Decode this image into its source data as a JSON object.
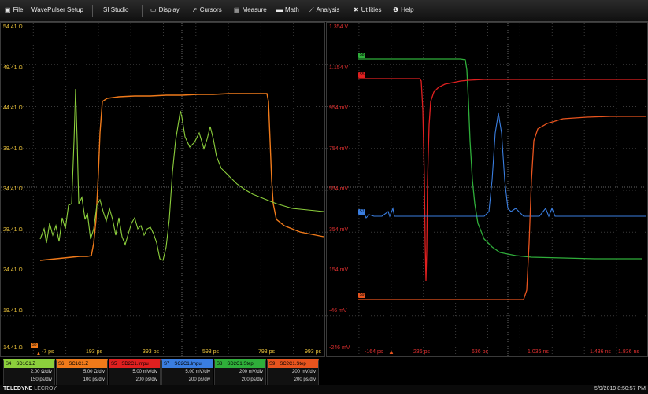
{
  "menu": {
    "file": "File",
    "wavepulser": "WavePulser Setup",
    "si_studio": "SI Studio",
    "display": "Display",
    "cursors": "Cursors",
    "measure": "Measure",
    "math": "Math",
    "analysis": "Analysis",
    "utilities": "Utilities",
    "help": "Help"
  },
  "left_grid": {
    "y_labels": [
      "54.41 Ω",
      "49.41 Ω",
      "44.41 Ω",
      "39.41 Ω",
      "34.41 Ω",
      "29.41 Ω",
      "24.41 Ω",
      "19.41 Ω",
      "14.41 Ω"
    ],
    "x_labels": [
      "-7 ps",
      "193 ps",
      "393 ps",
      "593 ps",
      "793 ps",
      "993 ps"
    ],
    "marker": "S6"
  },
  "right_grid": {
    "y_labels": [
      "1.354 V",
      "1.154 V",
      "954 mV",
      "754 mV",
      "554 mV",
      "354 mV",
      "154 mV",
      "-46 mV",
      "-246 mV"
    ],
    "x_labels": [
      "-164 ps",
      "236 ps",
      "636 ps",
      "1.036 ns",
      "1.436 ns",
      "1.836 ns"
    ],
    "markers": {
      "s8": "S8",
      "s5": "S5",
      "s7": "S7",
      "s9": "S9"
    }
  },
  "channels": [
    {
      "id": "S4",
      "name": "SD1C1.Z",
      "line1": "2.00 Ω/div",
      "line2": "150 ps/div",
      "color": "#8ccf3c"
    },
    {
      "id": "S6",
      "name": "SC1C1.Z",
      "line1": "5.00 Ω/div",
      "line2": "100 ps/div",
      "color": "#f07a1a"
    },
    {
      "id": "S5",
      "name": "SD2C1.Impu",
      "line1": "5.00 mV/div",
      "line2": "200 ps/div",
      "color": "#e02020"
    },
    {
      "id": "S7",
      "name": "SC2C1.Impu",
      "line1": "5.00 mV/div",
      "line2": "200 ps/div",
      "color": "#3a7ee0"
    },
    {
      "id": "S8",
      "name": "SD2C1.Step",
      "line1": "200 mV/div",
      "line2": "200 ps/div",
      "color": "#2fae3a"
    },
    {
      "id": "S9",
      "name": "SC2C1.Step",
      "line1": "200 mV/div",
      "line2": "200 ps/div",
      "color": "#e8541e"
    }
  ],
  "colors": {
    "green_trace": "#8ccf3c",
    "orange_trace": "#f07a1a",
    "red_trace": "#e02020",
    "blue_trace": "#3a7ee0",
    "dark_green_trace": "#2fae3a",
    "orange_right_trace": "#e8541e",
    "axis_left": "#e8c03a",
    "axis_right": "#e03030"
  },
  "footer": {
    "brand": "TELEDYNE",
    "brand_sub": "LECROY",
    "timestamp": "5/9/2019 8:50:57 PM"
  }
}
